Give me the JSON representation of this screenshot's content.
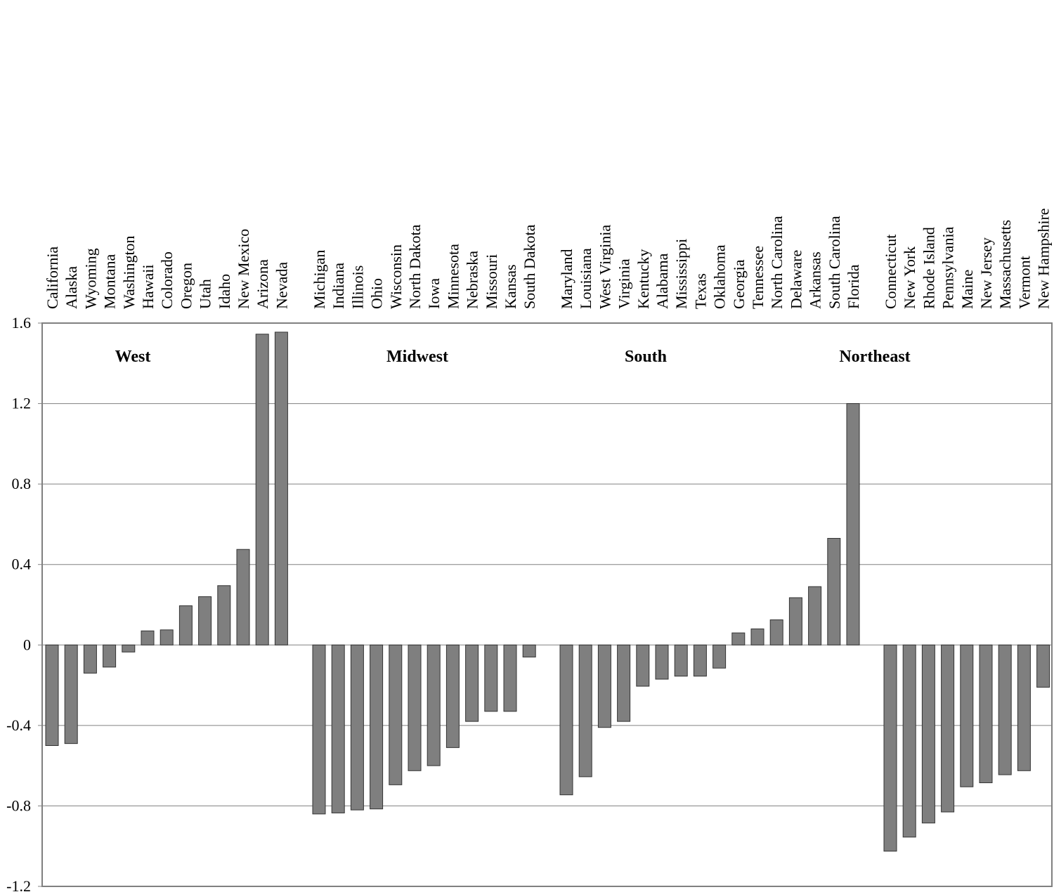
{
  "chart_data": {
    "type": "bar",
    "title": "",
    "xlabel": "",
    "ylabel": "",
    "ylim": [
      -1.2,
      1.6
    ],
    "yticks": [
      "1.6",
      "1.2",
      "0.8",
      "0.4",
      "0",
      "-0.4",
      "-0.8",
      "-1.2"
    ],
    "grid": true,
    "bar_color": "#7f7f7f",
    "groups": [
      {
        "name": "West",
        "categories": [
          "California",
          "Alaska",
          "Wyoming",
          "Montana",
          "Washington",
          "Hawaii",
          "Colorado",
          "Oregon",
          "Utah",
          "Idaho",
          "New Mexico",
          "Arizona",
          "Nevada"
        ],
        "values": [
          -0.5,
          -0.49,
          -0.14,
          -0.11,
          -0.035,
          0.07,
          0.075,
          0.195,
          0.24,
          0.295,
          0.475,
          1.545,
          1.555
        ]
      },
      {
        "name": "Midwest",
        "categories": [
          "Michigan",
          "Indiana",
          "Illinois",
          "Ohio",
          "Wisconsin",
          "North Dakota",
          "Iowa",
          "Minnesota",
          "Nebraska",
          "Missouri",
          "Kansas",
          "South Dakota"
        ],
        "values": [
          -0.84,
          -0.835,
          -0.82,
          -0.815,
          -0.695,
          -0.625,
          -0.6,
          -0.51,
          -0.38,
          -0.33,
          -0.33,
          -0.06
        ]
      },
      {
        "name": "South",
        "categories": [
          "Maryland",
          "Louisiana",
          "West Virginia",
          "Virginia",
          "Kentucky",
          "Alabama",
          "Mississippi",
          "Texas",
          "Oklahoma",
          "Georgia",
          "Tennessee",
          "North Carolina",
          "Delaware",
          "Arkansas",
          "South Carolina",
          "Florida"
        ],
        "values": [
          -0.745,
          -0.655,
          -0.41,
          -0.38,
          -0.205,
          -0.17,
          -0.155,
          -0.155,
          -0.115,
          0.06,
          0.08,
          0.125,
          0.235,
          0.29,
          0.53,
          1.2
        ]
      },
      {
        "name": "Northeast",
        "categories": [
          "Connecticut",
          "New York",
          "Rhode Island",
          "Pennsylvania",
          "Maine",
          "New Jersey",
          "Massachusetts",
          "Vermont",
          "New Hampshire"
        ],
        "values": [
          -1.025,
          -0.955,
          -0.885,
          -0.83,
          -0.705,
          -0.685,
          -0.645,
          -0.625,
          -0.21
        ]
      }
    ]
  }
}
